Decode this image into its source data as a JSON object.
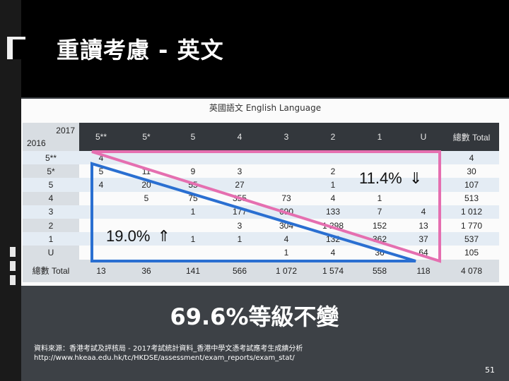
{
  "slide": {
    "title": "重讀考慮 - 英文",
    "table_title": "英國語文 English Language",
    "corner_top": "2017",
    "corner_bottom": "2016",
    "columns": [
      "5**",
      "5*",
      "5",
      "4",
      "3",
      "2",
      "1",
      "U",
      "總數 Total"
    ],
    "rows": [
      {
        "label": "5**",
        "cells": [
          "4",
          "",
          "",
          "",
          "",
          "",
          "",
          "",
          "4"
        ]
      },
      {
        "label": "5*",
        "cells": [
          "5",
          "11",
          "9",
          "3",
          "",
          "2",
          "",
          "",
          "30"
        ]
      },
      {
        "label": "5",
        "cells": [
          "4",
          "20",
          "55",
          "27",
          "",
          "1",
          "",
          "",
          "107"
        ]
      },
      {
        "label": "4",
        "cells": [
          "",
          "5",
          "75",
          "355",
          "73",
          "4",
          "1",
          "",
          "513"
        ]
      },
      {
        "label": "3",
        "cells": [
          "",
          "",
          "1",
          "177",
          "690",
          "133",
          "7",
          "4",
          "1 012"
        ]
      },
      {
        "label": "2",
        "cells": [
          "",
          "",
          "",
          "3",
          "304",
          "1 298",
          "152",
          "13",
          "1 770"
        ]
      },
      {
        "label": "1",
        "cells": [
          "",
          "",
          "1",
          "1",
          "4",
          "132",
          "362",
          "37",
          "537"
        ]
      },
      {
        "label": "U",
        "cells": [
          "",
          "",
          "",
          "",
          "1",
          "4",
          "36",
          "64",
          "105"
        ]
      }
    ],
    "total_row": {
      "label": "總數 Total",
      "cells": [
        "13",
        "36",
        "141",
        "566",
        "1 072",
        "1 574",
        "558",
        "118",
        "4 078"
      ]
    },
    "pct_down": "11.4%",
    "pct_up": "19.0%",
    "down_arrow": "⇓",
    "up_arrow": "⇑",
    "headline": "69.6%等級不變",
    "source_line1": "資料來源：香港考試及評核局 - 2017考試統計資料_香港中學文憑考試應考生成績分析",
    "source_line2": "http://www.hkeaa.edu.hk/tc/HKDSE/assessment/exam_reports/exam_stat/",
    "page_number": "51",
    "colors": {
      "pink": "#e56fb0",
      "blue": "#2a6fd1"
    }
  }
}
